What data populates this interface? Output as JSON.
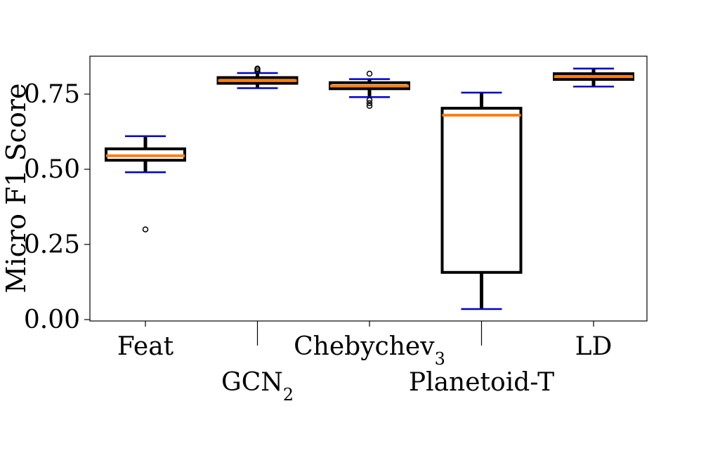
{
  "chart_data": {
    "type": "box",
    "ylabel": "Micro F1 Score",
    "xlabel": "",
    "title": "",
    "ylim": [
      0.0,
      0.87
    ],
    "yticks": [
      {
        "value": 0.0,
        "label": "0.00"
      },
      {
        "value": 0.25,
        "label": "0.25"
      },
      {
        "value": 0.5,
        "label": "0.50"
      },
      {
        "value": 0.75,
        "label": "0.75"
      }
    ],
    "grid": false,
    "categories": [
      {
        "label": "Feat",
        "sub": "",
        "row": "upper"
      },
      {
        "label": "GCN",
        "sub": "2",
        "row": "lower"
      },
      {
        "label": "Chebychev",
        "sub": "3",
        "row": "upper"
      },
      {
        "label": "Planetoid-T",
        "sub": "",
        "row": "lower"
      },
      {
        "label": "LD",
        "sub": "",
        "row": "upper"
      }
    ],
    "boxes": [
      {
        "whislo": 0.49,
        "q1": 0.53,
        "med": 0.545,
        "q3": 0.568,
        "whishi": 0.61,
        "fliers": [
          0.3
        ]
      },
      {
        "whislo": 0.77,
        "q1": 0.786,
        "med": 0.795,
        "q3": 0.805,
        "whishi": 0.82,
        "fliers": [
          0.826,
          0.832,
          0.835
        ]
      },
      {
        "whislo": 0.74,
        "q1": 0.768,
        "med": 0.777,
        "q3": 0.788,
        "whishi": 0.8,
        "fliers": [
          0.711,
          0.72,
          0.73,
          0.818
        ]
      },
      {
        "whislo": 0.035,
        "q1": 0.157,
        "med": 0.68,
        "q3": 0.703,
        "whishi": 0.755,
        "fliers": []
      },
      {
        "whislo": 0.775,
        "q1": 0.799,
        "med": 0.808,
        "q3": 0.818,
        "whishi": 0.835,
        "fliers": []
      }
    ],
    "colors": {
      "box": "#000000",
      "median": "#ff7f0e",
      "cap": "#0000cc",
      "flier": "#000000"
    }
  }
}
